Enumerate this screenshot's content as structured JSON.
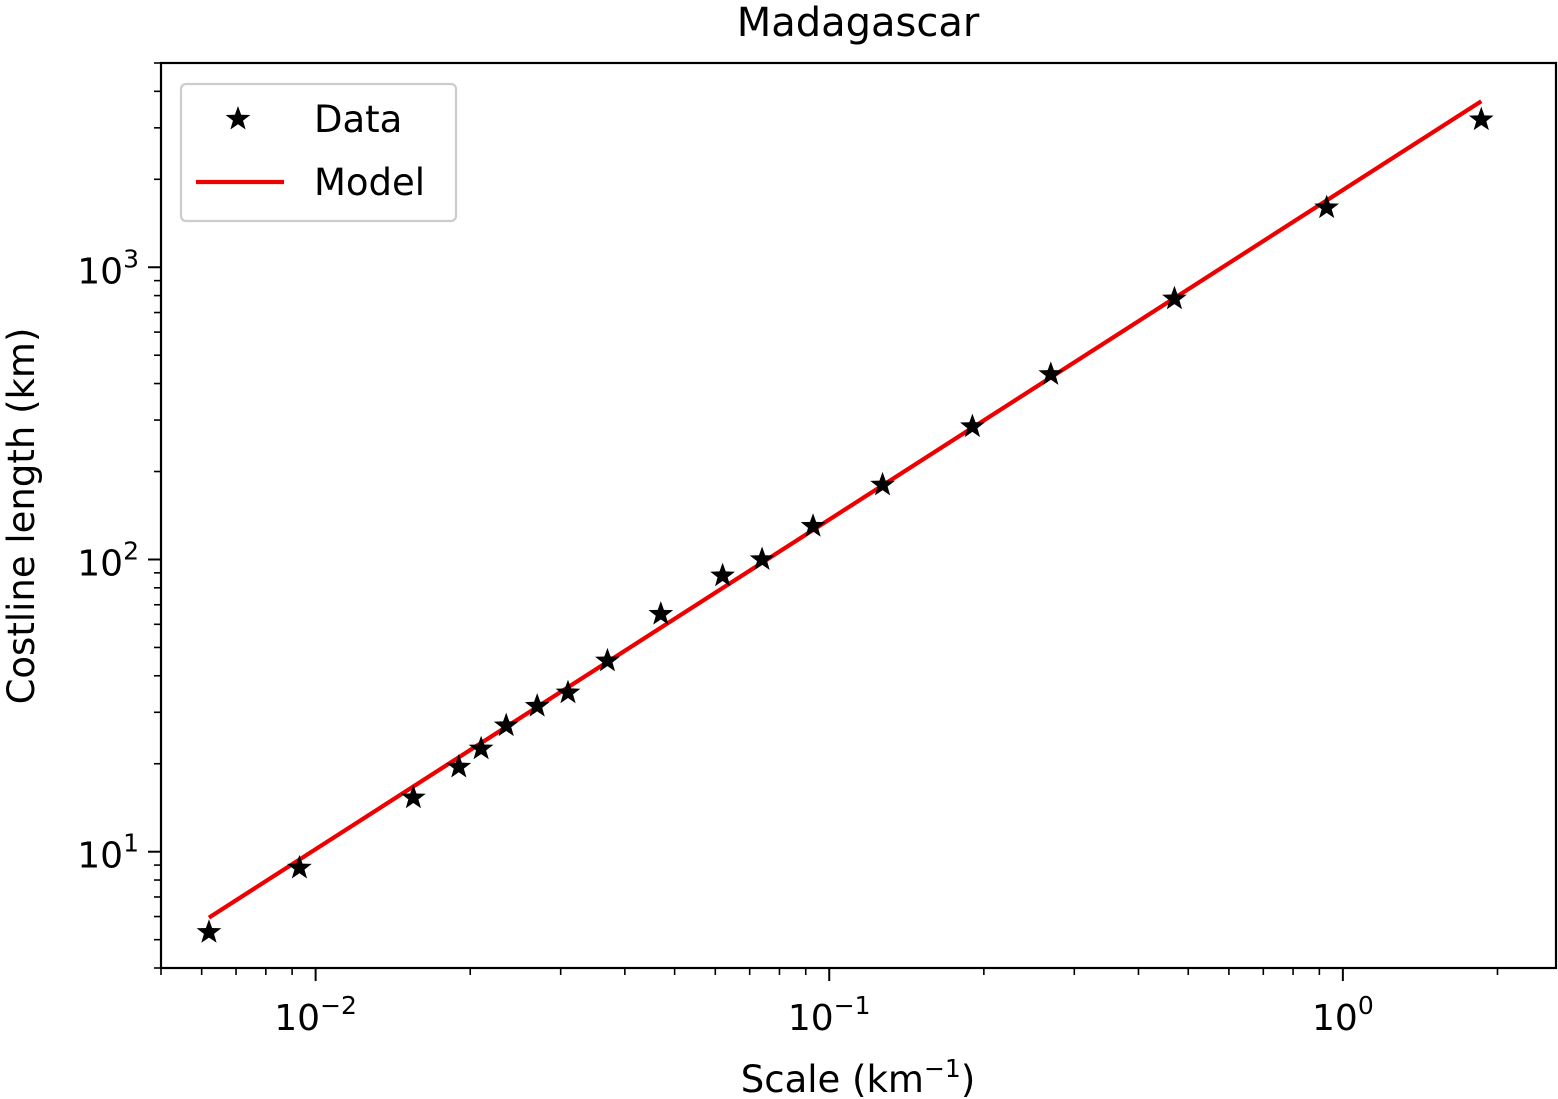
{
  "chart_data": {
    "type": "scatter",
    "title": "Madagascar",
    "xlabel": "Scale (km",
    "xlabel_sup": "−1",
    "xlabel_suffix": ")",
    "ylabel": "Costline length (km)",
    "xscale": "log",
    "yscale": "log",
    "xlim": [
      0.005,
      2.6
    ],
    "ylim": [
      4,
      5000
    ],
    "x_ticks": [
      {
        "value": 0.01,
        "base": "10",
        "exp": "−2"
      },
      {
        "value": 0.1,
        "base": "10",
        "exp": "−1"
      },
      {
        "value": 1,
        "base": "10",
        "exp": "0"
      }
    ],
    "y_ticks": [
      {
        "value": 10,
        "base": "10",
        "exp": "1"
      },
      {
        "value": 100,
        "base": "10",
        "exp": "2"
      },
      {
        "value": 1000,
        "base": "10",
        "exp": "3"
      }
    ],
    "grid": false,
    "legend": {
      "position": "top-left",
      "entries": [
        "Data",
        "Model"
      ]
    },
    "series": [
      {
        "name": "Data",
        "kind": "scatter",
        "marker": "star",
        "color": "#000000",
        "x": [
          0.0062,
          0.0093,
          0.0155,
          0.019,
          0.021,
          0.0235,
          0.027,
          0.031,
          0.037,
          0.047,
          0.062,
          0.074,
          0.093,
          0.127,
          0.19,
          0.27,
          0.47,
          0.93,
          1.86
        ],
        "y": [
          5.3,
          8.8,
          15.3,
          19.5,
          22.5,
          27,
          31.5,
          35,
          45,
          65,
          88,
          100,
          130,
          180,
          285,
          430,
          780,
          1600,
          3200
        ]
      },
      {
        "name": "Model",
        "kind": "line",
        "color": "#ee0000",
        "x": [
          0.0062,
          1.86
        ],
        "y": [
          5.95,
          3700
        ]
      }
    ]
  }
}
